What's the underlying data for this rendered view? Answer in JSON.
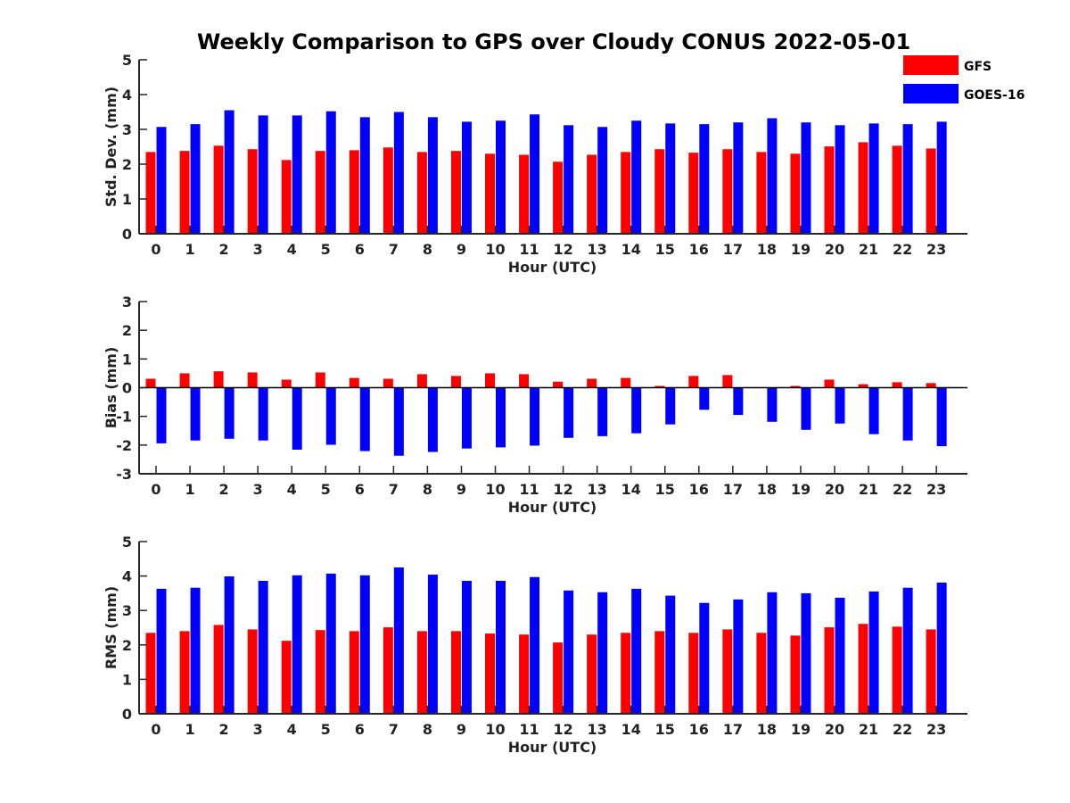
{
  "title": "Weekly Comparison to GPS over Cloudy CONUS 2022-05-01",
  "legend": [
    {
      "name": "GFS",
      "color": "#ff0000"
    },
    {
      "name": "GOES-16",
      "color": "#0000ff"
    }
  ],
  "chart_data": [
    {
      "type": "bar",
      "xlabel": "Hour (UTC)",
      "ylabel": "Std. Dev. (mm)",
      "ylim": [
        0,
        5
      ],
      "yticks": [
        0,
        1,
        2,
        3,
        4,
        5
      ],
      "categories": [
        0,
        1,
        2,
        3,
        4,
        5,
        6,
        7,
        8,
        9,
        10,
        11,
        12,
        13,
        14,
        15,
        16,
        17,
        18,
        19,
        20,
        21,
        22,
        23
      ],
      "series": [
        {
          "name": "GFS",
          "color": "#ff0000",
          "values": [
            2.35,
            2.38,
            2.53,
            2.43,
            2.12,
            2.38,
            2.4,
            2.48,
            2.35,
            2.38,
            2.3,
            2.27,
            2.07,
            2.27,
            2.35,
            2.43,
            2.33,
            2.43,
            2.35,
            2.3,
            2.51,
            2.63,
            2.53,
            2.45
          ]
        },
        {
          "name": "GOES-16",
          "color": "#0000ff",
          "values": [
            3.07,
            3.15,
            3.55,
            3.4,
            3.4,
            3.52,
            3.35,
            3.5,
            3.35,
            3.22,
            3.25,
            3.43,
            3.12,
            3.07,
            3.25,
            3.17,
            3.15,
            3.2,
            3.32,
            3.2,
            3.12,
            3.17,
            3.15,
            3.22
          ]
        }
      ]
    },
    {
      "type": "bar",
      "xlabel": "Hour (UTC)",
      "ylabel": "Bias (mm)",
      "ylim": [
        -3,
        3
      ],
      "yticks": [
        -3,
        -2,
        -1,
        0,
        1,
        2,
        3
      ],
      "zero_line": true,
      "categories": [
        0,
        1,
        2,
        3,
        4,
        5,
        6,
        7,
        8,
        9,
        10,
        11,
        12,
        13,
        14,
        15,
        16,
        17,
        18,
        19,
        20,
        21,
        22,
        23
      ],
      "series": [
        {
          "name": "GFS",
          "color": "#ff0000",
          "values": [
            0.31,
            0.5,
            0.57,
            0.53,
            0.28,
            0.53,
            0.34,
            0.31,
            0.47,
            0.41,
            0.5,
            0.47,
            0.21,
            0.31,
            0.34,
            0.06,
            0.41,
            0.44,
            0.0,
            0.06,
            0.28,
            0.12,
            0.19,
            0.16
          ]
        },
        {
          "name": "GOES-16",
          "color": "#0000ff",
          "values": [
            -1.94,
            -1.84,
            -1.78,
            -1.84,
            -2.16,
            -1.99,
            -2.21,
            -2.37,
            -2.24,
            -2.12,
            -2.08,
            -2.02,
            -1.75,
            -1.69,
            -1.59,
            -1.28,
            -0.77,
            -0.95,
            -1.19,
            -1.47,
            -1.25,
            -1.62,
            -1.84,
            -2.04
          ]
        }
      ]
    },
    {
      "type": "bar",
      "xlabel": "Hour (UTC)",
      "ylabel": "RMS (mm)",
      "ylim": [
        0,
        5
      ],
      "yticks": [
        0,
        1,
        2,
        3,
        4,
        5
      ],
      "categories": [
        0,
        1,
        2,
        3,
        4,
        5,
        6,
        7,
        8,
        9,
        10,
        11,
        12,
        13,
        14,
        15,
        16,
        17,
        18,
        19,
        20,
        21,
        22,
        23
      ],
      "series": [
        {
          "name": "GFS",
          "color": "#ff0000",
          "values": [
            2.35,
            2.4,
            2.58,
            2.45,
            2.12,
            2.43,
            2.4,
            2.51,
            2.4,
            2.4,
            2.33,
            2.3,
            2.07,
            2.3,
            2.35,
            2.4,
            2.35,
            2.45,
            2.35,
            2.27,
            2.51,
            2.61,
            2.53,
            2.45
          ]
        },
        {
          "name": "GOES-16",
          "color": "#0000ff",
          "values": [
            3.63,
            3.66,
            3.99,
            3.86,
            4.02,
            4.07,
            4.02,
            4.25,
            4.04,
            3.86,
            3.86,
            3.97,
            3.58,
            3.53,
            3.63,
            3.43,
            3.22,
            3.32,
            3.53,
            3.5,
            3.37,
            3.55,
            3.66,
            3.81
          ]
        }
      ]
    }
  ]
}
